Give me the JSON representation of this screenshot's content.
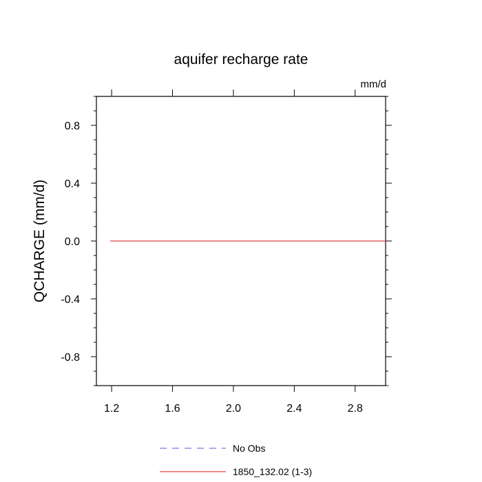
{
  "chart_data": {
    "type": "line",
    "title": "aquifer recharge rate",
    "units": "mm/d",
    "xlabel": "",
    "ylabel": "QCHARGE  (mm/d)",
    "xlim": [
      1.1,
      3.0
    ],
    "ylim": [
      -1.0,
      1.0
    ],
    "x_ticks": [
      {
        "value": 1.2,
        "label": "1.2"
      },
      {
        "value": 1.6,
        "label": "1.6"
      },
      {
        "value": 2.0,
        "label": "2.0"
      },
      {
        "value": 2.4,
        "label": "2.4"
      },
      {
        "value": 2.8,
        "label": "2.8"
      }
    ],
    "y_ticks": [
      {
        "value": 0.8,
        "label": "0.8"
      },
      {
        "value": 0.4,
        "label": "0.4"
      },
      {
        "value": 0.0,
        "label": "0.0"
      },
      {
        "value": -0.4,
        "label": "-0.4"
      },
      {
        "value": -0.8,
        "label": "-0.8"
      }
    ],
    "grid": false,
    "legend_position": "bottom",
    "series": [
      {
        "name": "No Obs",
        "style": "dashed",
        "color": "#7777dd",
        "x": [],
        "y": []
      },
      {
        "name": "1850_132.02 (1-3)",
        "style": "solid",
        "color": "#dd4444",
        "x": [
          1.0,
          3.0
        ],
        "y": [
          0.0,
          0.0
        ]
      }
    ]
  }
}
